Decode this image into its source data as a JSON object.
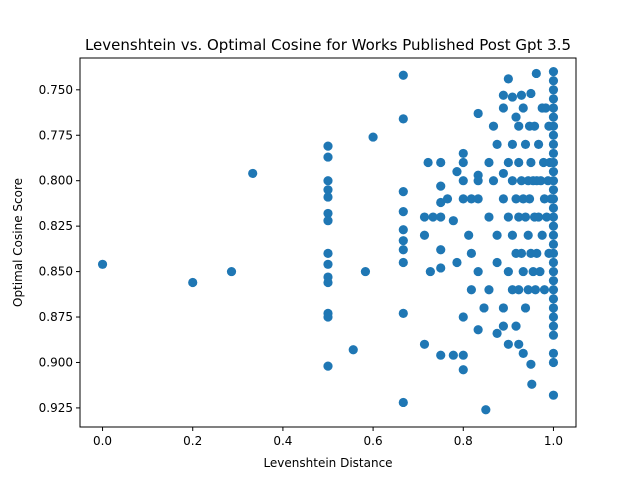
{
  "chart_data": {
    "type": "scatter",
    "title": "Levenshtein vs. Optimal Cosine for Works Published Post Gpt 3.5",
    "xlabel": "Levenshtein Distance",
    "ylabel": "Optimal Cosine Score",
    "xlim": [
      -0.05,
      1.05
    ],
    "ylim": [
      0.9355,
      0.7325
    ],
    "y_inverted": true,
    "x_ticks": [
      0.0,
      0.2,
      0.4,
      0.6,
      0.8,
      1.0
    ],
    "x_tick_labels": [
      "0.0",
      "0.2",
      "0.4",
      "0.6",
      "0.8",
      "1.0"
    ],
    "y_ticks": [
      0.75,
      0.775,
      0.8,
      0.825,
      0.85,
      0.875,
      0.9,
      0.925
    ],
    "y_tick_labels": [
      "0.750",
      "0.775",
      "0.800",
      "0.825",
      "0.850",
      "0.875",
      "0.900",
      "0.925"
    ],
    "grid": false,
    "marker_color": "#1f77b4",
    "series": [
      {
        "points": [
          [
            0.0,
            0.846
          ],
          [
            0.2,
            0.856
          ],
          [
            0.286,
            0.85
          ],
          [
            0.333,
            0.796
          ],
          [
            0.5,
            0.781
          ],
          [
            0.5,
            0.787
          ],
          [
            0.5,
            0.8
          ],
          [
            0.5,
            0.805
          ],
          [
            0.5,
            0.809
          ],
          [
            0.5,
            0.818
          ],
          [
            0.5,
            0.822
          ],
          [
            0.5,
            0.84
          ],
          [
            0.5,
            0.846
          ],
          [
            0.5,
            0.853
          ],
          [
            0.5,
            0.856
          ],
          [
            0.5,
            0.873
          ],
          [
            0.5,
            0.875
          ],
          [
            0.5,
            0.902
          ],
          [
            0.556,
            0.893
          ],
          [
            0.583,
            0.85
          ],
          [
            0.6,
            0.776
          ],
          [
            0.667,
            0.742
          ],
          [
            0.667,
            0.766
          ],
          [
            0.667,
            0.806
          ],
          [
            0.667,
            0.817
          ],
          [
            0.667,
            0.827
          ],
          [
            0.667,
            0.833
          ],
          [
            0.667,
            0.838
          ],
          [
            0.667,
            0.845
          ],
          [
            0.667,
            0.873
          ],
          [
            0.667,
            0.922
          ],
          [
            0.714,
            0.82
          ],
          [
            0.714,
            0.83
          ],
          [
            0.714,
            0.89
          ],
          [
            0.722,
            0.79
          ],
          [
            0.727,
            0.85
          ],
          [
            0.733,
            0.82
          ],
          [
            0.75,
            0.79
          ],
          [
            0.75,
            0.803
          ],
          [
            0.75,
            0.812
          ],
          [
            0.75,
            0.82
          ],
          [
            0.75,
            0.838
          ],
          [
            0.75,
            0.848
          ],
          [
            0.75,
            0.896
          ],
          [
            0.765,
            0.81
          ],
          [
            0.778,
            0.822
          ],
          [
            0.778,
            0.896
          ],
          [
            0.786,
            0.795
          ],
          [
            0.786,
            0.845
          ],
          [
            0.8,
            0.785
          ],
          [
            0.8,
            0.79
          ],
          [
            0.8,
            0.8
          ],
          [
            0.8,
            0.81
          ],
          [
            0.8,
            0.875
          ],
          [
            0.8,
            0.896
          ],
          [
            0.8,
            0.904
          ],
          [
            0.812,
            0.83
          ],
          [
            0.818,
            0.81
          ],
          [
            0.818,
            0.84
          ],
          [
            0.818,
            0.86
          ],
          [
            0.833,
            0.763
          ],
          [
            0.833,
            0.797
          ],
          [
            0.833,
            0.8
          ],
          [
            0.833,
            0.81
          ],
          [
            0.833,
            0.85
          ],
          [
            0.833,
            0.882
          ],
          [
            0.846,
            0.87
          ],
          [
            0.85,
            0.926
          ],
          [
            0.857,
            0.79
          ],
          [
            0.857,
            0.82
          ],
          [
            0.857,
            0.86
          ],
          [
            0.867,
            0.77
          ],
          [
            0.867,
            0.8
          ],
          [
            0.875,
            0.78
          ],
          [
            0.875,
            0.83
          ],
          [
            0.875,
            0.845
          ],
          [
            0.875,
            0.884
          ],
          [
            0.889,
            0.753
          ],
          [
            0.889,
            0.76
          ],
          [
            0.889,
            0.796
          ],
          [
            0.889,
            0.81
          ],
          [
            0.889,
            0.87
          ],
          [
            0.889,
            0.88
          ],
          [
            0.9,
            0.744
          ],
          [
            0.9,
            0.79
          ],
          [
            0.9,
            0.82
          ],
          [
            0.9,
            0.85
          ],
          [
            0.9,
            0.89
          ],
          [
            0.909,
            0.754
          ],
          [
            0.909,
            0.78
          ],
          [
            0.909,
            0.8
          ],
          [
            0.909,
            0.83
          ],
          [
            0.909,
            0.86
          ],
          [
            0.917,
            0.765
          ],
          [
            0.917,
            0.81
          ],
          [
            0.917,
            0.84
          ],
          [
            0.917,
            0.88
          ],
          [
            0.923,
            0.77
          ],
          [
            0.923,
            0.79
          ],
          [
            0.923,
            0.82
          ],
          [
            0.923,
            0.86
          ],
          [
            0.923,
            0.89
          ],
          [
            0.929,
            0.753
          ],
          [
            0.929,
            0.8
          ],
          [
            0.929,
            0.84
          ],
          [
            0.933,
            0.76
          ],
          [
            0.933,
            0.81
          ],
          [
            0.933,
            0.85
          ],
          [
            0.933,
            0.895
          ],
          [
            0.938,
            0.78
          ],
          [
            0.938,
            0.82
          ],
          [
            0.938,
            0.87
          ],
          [
            0.944,
            0.8
          ],
          [
            0.944,
            0.83
          ],
          [
            0.944,
            0.86
          ],
          [
            0.947,
            0.77
          ],
          [
            0.947,
            0.81
          ],
          [
            0.95,
            0.752
          ],
          [
            0.95,
            0.79
          ],
          [
            0.95,
            0.84
          ],
          [
            0.95,
            0.901
          ],
          [
            0.952,
            0.912
          ],
          [
            0.955,
            0.8
          ],
          [
            0.955,
            0.85
          ],
          [
            0.958,
            0.77
          ],
          [
            0.958,
            0.82
          ],
          [
            0.96,
            0.86
          ],
          [
            0.962,
            0.741
          ],
          [
            0.963,
            0.8
          ],
          [
            0.963,
            0.84
          ],
          [
            0.967,
            0.78
          ],
          [
            0.967,
            0.82
          ],
          [
            0.97,
            0.85
          ],
          [
            0.972,
            0.8
          ],
          [
            0.975,
            0.76
          ],
          [
            0.975,
            0.83
          ],
          [
            0.978,
            0.79
          ],
          [
            0.98,
            0.81
          ],
          [
            0.98,
            0.86
          ],
          [
            0.983,
            0.76
          ],
          [
            0.985,
            0.82
          ],
          [
            0.988,
            0.8
          ],
          [
            0.99,
            0.77
          ],
          [
            0.99,
            0.84
          ],
          [
            0.992,
            0.79
          ],
          [
            0.995,
            0.81
          ],
          [
            1.0,
            0.74
          ],
          [
            1.0,
            0.745
          ],
          [
            1.0,
            0.75
          ],
          [
            1.0,
            0.755
          ],
          [
            1.0,
            0.76
          ],
          [
            1.0,
            0.765
          ],
          [
            1.0,
            0.77
          ],
          [
            1.0,
            0.775
          ],
          [
            1.0,
            0.78
          ],
          [
            1.0,
            0.785
          ],
          [
            1.0,
            0.79
          ],
          [
            1.0,
            0.795
          ],
          [
            1.0,
            0.8
          ],
          [
            1.0,
            0.805
          ],
          [
            1.0,
            0.81
          ],
          [
            1.0,
            0.815
          ],
          [
            1.0,
            0.82
          ],
          [
            1.0,
            0.825
          ],
          [
            1.0,
            0.83
          ],
          [
            1.0,
            0.835
          ],
          [
            1.0,
            0.84
          ],
          [
            1.0,
            0.845
          ],
          [
            1.0,
            0.85
          ],
          [
            1.0,
            0.855
          ],
          [
            1.0,
            0.86
          ],
          [
            1.0,
            0.865
          ],
          [
            1.0,
            0.87
          ],
          [
            1.0,
            0.875
          ],
          [
            1.0,
            0.88
          ],
          [
            1.0,
            0.885
          ],
          [
            1.0,
            0.895
          ],
          [
            1.0,
            0.9
          ],
          [
            1.0,
            0.918
          ]
        ]
      }
    ]
  }
}
